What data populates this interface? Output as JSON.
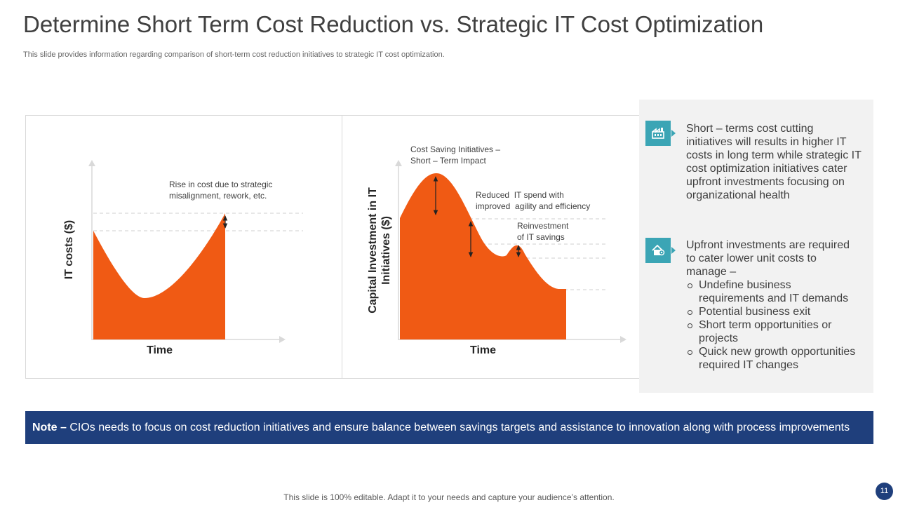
{
  "title": "Determine Short Term Cost Reduction vs. Strategic IT Cost Optimization",
  "subtitle": "This slide provides information regarding comparison of  short-term cost reduction initiatives to strategic IT cost optimization.",
  "colors": {
    "accent": "#f05a14",
    "navy": "#1f3f7c",
    "teal": "#3ba5b5",
    "panel": "#f2f2f2"
  },
  "left_chart": {
    "y_label": "IT costs ($)",
    "x_label": "Time",
    "annotation": "Rise in cost due to strategic\nmisalignment, rework, etc."
  },
  "right_chart": {
    "y_label": "Capital Investment in IT\nInitiatives ($)",
    "x_label": "Time",
    "annotations": [
      "Cost Saving Initiatives –\nShort – Term Impact",
      "Reduced  IT spend with\nimproved  agility and efficiency",
      "Reinvestment\nof IT savings"
    ]
  },
  "panel": {
    "block1": {
      "icon": "factory-icon",
      "text": "Short – terms cost cutting initiatives will results in higher IT costs in long term while strategic IT cost optimization initiatives cater upfront investments focusing on organizational health"
    },
    "block2": {
      "icon": "home-location-icon",
      "intro": "Upfront investments are required to cater lower unit costs to manage –",
      "bullets": [
        "Undefine business requirements and IT demands",
        "Potential business exit",
        "Short term opportunities or projects",
        "Quick new growth opportunities required IT changes"
      ]
    }
  },
  "note": {
    "label": "Note –",
    "text": " CIOs needs to focus on cost reduction initiatives and ensure balance between savings targets and assistance to innovation along with process improvements"
  },
  "footer": "This slide is 100% editable. Adapt it to your needs and capture your audience’s attention.",
  "page_number": "11"
}
